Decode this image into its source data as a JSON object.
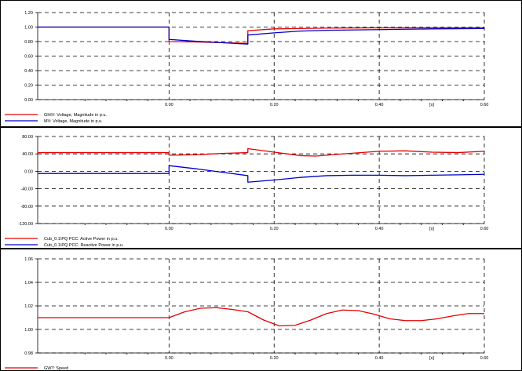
{
  "chart_data": [
    {
      "type": "line",
      "xlim": [
        -0.25,
        0.6
      ],
      "ylim": [
        0.0,
        1.2
      ],
      "x_ticks": [
        0.0,
        0.2,
        0.4,
        0.6
      ],
      "x_tick_labels": [
        "0.00",
        "0.20",
        "0.40",
        "0.60"
      ],
      "xlabel": "[s]",
      "y_ticks": [
        0.0,
        0.2,
        0.4,
        0.6,
        0.8,
        1.0,
        1.2
      ],
      "y_tick_labels": [
        "0.00",
        "0.20",
        "0.40",
        "0.60",
        "0.80",
        "1.00",
        "1.20"
      ],
      "grid": true,
      "legend_position": "bottom-left",
      "series": [
        {
          "name": "GIHV: Voltage, Magnitude in p.u.",
          "color": "#e60000",
          "points": [
            [
              -0.25,
              1.0
            ],
            [
              0.0,
              1.0
            ],
            [
              0.0,
              0.8
            ],
            [
              0.05,
              0.795
            ],
            [
              0.1,
              0.785
            ],
            [
              0.15,
              0.775
            ],
            [
              0.15,
              0.95
            ],
            [
              0.2,
              0.975
            ],
            [
              0.3,
              0.985
            ],
            [
              0.4,
              0.99
            ],
            [
              0.5,
              0.99
            ],
            [
              0.6,
              0.99
            ]
          ]
        },
        {
          "name": "MV: Voltage, Magnitude in p.u.",
          "color": "#0000cc",
          "points": [
            [
              -0.25,
              1.0
            ],
            [
              0.0,
              1.0
            ],
            [
              0.0,
              0.83
            ],
            [
              0.05,
              0.805
            ],
            [
              0.1,
              0.785
            ],
            [
              0.15,
              0.765
            ],
            [
              0.15,
              0.89
            ],
            [
              0.2,
              0.92
            ],
            [
              0.25,
              0.945
            ],
            [
              0.3,
              0.955
            ],
            [
              0.4,
              0.965
            ],
            [
              0.5,
              0.975
            ],
            [
              0.6,
              0.98
            ]
          ]
        }
      ]
    },
    {
      "type": "line",
      "xlim": [
        -0.25,
        0.6
      ],
      "ylim": [
        -120.0,
        80.0
      ],
      "x_ticks": [
        0.0,
        0.2,
        0.4,
        0.6
      ],
      "x_tick_labels": [
        "0.00",
        "0.20",
        "0.40",
        "0.60"
      ],
      "xlabel": "[s]",
      "y_ticks": [
        -120.0,
        -80.0,
        -40.0,
        0.0,
        40.0,
        80.0
      ],
      "y_tick_labels": [
        "-120.00",
        "-80.00",
        "-40.00",
        "0.00",
        "40.00",
        "80.00"
      ],
      "grid": true,
      "legend_position": "bottom-left",
      "series": [
        {
          "name": "Cub_0.1\\PQ PCC: Active Power in p.u.",
          "color": "#e60000",
          "points": [
            [
              -0.25,
              43
            ],
            [
              0.0,
              43
            ],
            [
              0.0,
              37
            ],
            [
              0.05,
              38
            ],
            [
              0.1,
              41
            ],
            [
              0.15,
              43
            ],
            [
              0.15,
              52
            ],
            [
              0.2,
              44
            ],
            [
              0.25,
              36
            ],
            [
              0.28,
              35
            ],
            [
              0.32,
              39
            ],
            [
              0.4,
              46
            ],
            [
              0.45,
              47
            ],
            [
              0.5,
              44
            ],
            [
              0.55,
              43
            ],
            [
              0.6,
              46
            ]
          ]
        },
        {
          "name": "Cub_0.1\\PQ PCC: Reactive Power in p.u.",
          "color": "#0000cc",
          "points": [
            [
              -0.25,
              -5
            ],
            [
              0.0,
              -5
            ],
            [
              0.0,
              13
            ],
            [
              0.05,
              6
            ],
            [
              0.1,
              -2
            ],
            [
              0.15,
              -10
            ],
            [
              0.15,
              -25
            ],
            [
              0.2,
              -20
            ],
            [
              0.25,
              -14
            ],
            [
              0.3,
              -10
            ],
            [
              0.35,
              -9
            ],
            [
              0.4,
              -9
            ],
            [
              0.45,
              -10
            ],
            [
              0.5,
              -9
            ],
            [
              0.55,
              -8
            ],
            [
              0.6,
              -7
            ]
          ]
        }
      ]
    },
    {
      "type": "line",
      "xlim": [
        -0.25,
        0.6
      ],
      "ylim": [
        0.98,
        1.06
      ],
      "x_ticks": [
        0.0,
        0.2,
        0.4,
        0.6
      ],
      "x_tick_labels": [
        "0.00",
        "0.20",
        "0.40",
        "0.60"
      ],
      "xlabel": "[s]",
      "y_ticks": [
        0.98,
        1.0,
        1.02,
        1.04,
        1.06
      ],
      "y_tick_labels": [
        "0.98",
        "1.00",
        "1.02",
        "1.04",
        "1.06"
      ],
      "grid": true,
      "legend_position": "bottom-left",
      "series": [
        {
          "name": "GWT: Speed",
          "color": "#e60000",
          "points": [
            [
              -0.25,
              1.01
            ],
            [
              0.0,
              1.01
            ],
            [
              0.03,
              1.015
            ],
            [
              0.06,
              1.018
            ],
            [
              0.09,
              1.0185
            ],
            [
              0.12,
              1.017
            ],
            [
              0.15,
              1.015
            ],
            [
              0.18,
              1.008
            ],
            [
              0.21,
              1.003
            ],
            [
              0.24,
              1.0035
            ],
            [
              0.27,
              1.008
            ],
            [
              0.3,
              1.0135
            ],
            [
              0.33,
              1.0165
            ],
            [
              0.36,
              1.016
            ],
            [
              0.39,
              1.013
            ],
            [
              0.42,
              1.009
            ],
            [
              0.45,
              1.0075
            ],
            [
              0.48,
              1.0075
            ],
            [
              0.51,
              1.009
            ],
            [
              0.54,
              1.0115
            ],
            [
              0.57,
              1.0135
            ],
            [
              0.6,
              1.0135
            ]
          ]
        }
      ]
    }
  ]
}
